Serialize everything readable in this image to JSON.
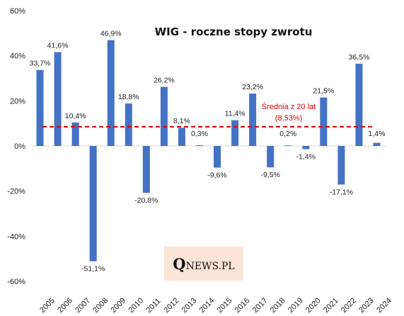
{
  "chart_data": {
    "type": "bar",
    "title": "WIG - roczne stopy zwrotu",
    "categories": [
      "2005",
      "2006",
      "2007",
      "2008",
      "2009",
      "2010",
      "2011",
      "2012",
      "2013",
      "2014",
      "2015",
      "2016",
      "2017",
      "2018",
      "2019",
      "2020",
      "2021",
      "2022",
      "2023",
      "2024"
    ],
    "values": [
      33.7,
      41.6,
      10.4,
      -51.1,
      46.9,
      18.8,
      -20.8,
      26.2,
      8.1,
      0.3,
      -9.6,
      11.4,
      23.2,
      -9.5,
      0.2,
      -1.4,
      21.5,
      -17.1,
      36.5,
      1.4
    ],
    "data_labels": [
      "33,7%",
      "41,6%",
      "10,4%",
      "-51,1%",
      "46,9%",
      "18,8%",
      "-20,8%",
      "26,2%",
      "8,1%",
      "0,3%",
      "-9,6%",
      "11,4%",
      "23,2%",
      "-9,5%",
      "0,2%",
      "-1,4%",
      "21,5%",
      "-17,1%",
      "36,5%",
      "1,4%"
    ],
    "ylim": [
      -60,
      60
    ],
    "yticks": [
      60,
      40,
      20,
      0,
      -20,
      -40,
      -60
    ],
    "ytick_labels": [
      "60%",
      "40%",
      "20%",
      "0%",
      "-20%",
      "-40%",
      "-60%"
    ],
    "bar_color": "#4472c4",
    "average": {
      "value": 8.53,
      "label_line1": "Średnia z 20 lat",
      "label_line2": "(8,53%)",
      "color": "#e00000"
    },
    "grid": false,
    "legend": "none"
  },
  "logo": {
    "q": "Q",
    "rest": "NEWS.PL",
    "background": "#fce4d6"
  }
}
